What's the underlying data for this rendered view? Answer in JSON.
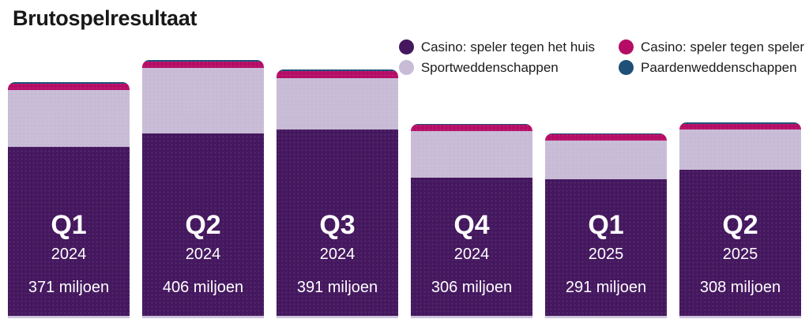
{
  "title": "Brutospelresultaat",
  "chart_data": {
    "type": "bar",
    "stacked": true,
    "title": "Brutospelresultaat",
    "unit": "miljoen",
    "grid": false,
    "axes_visible": false,
    "legend_position": "top-right",
    "categories": [
      {
        "quarter": "Q1",
        "year": "2024",
        "total": 371,
        "total_label": "371 miljoen"
      },
      {
        "quarter": "Q2",
        "year": "2024",
        "total": 406,
        "total_label": "406 miljoen"
      },
      {
        "quarter": "Q3",
        "year": "2024",
        "total": 391,
        "total_label": "391 miljoen"
      },
      {
        "quarter": "Q4",
        "year": "2024",
        "total": 306,
        "total_label": "306 miljoen"
      },
      {
        "quarter": "Q1",
        "year": "2025",
        "total": 291,
        "total_label": "291 miljoen"
      },
      {
        "quarter": "Q2",
        "year": "2025",
        "total": 308,
        "total_label": "308 miljoen"
      }
    ],
    "totals": [
      371,
      406,
      391,
      306,
      291,
      308
    ],
    "series": [
      {
        "name": "Casino: speler tegen het huis",
        "color": "#44175e",
        "values": [
          270,
          291,
          297,
          221,
          219,
          233
        ]
      },
      {
        "name": "Sportweddenschappen",
        "color": "#c8bbd6",
        "values": [
          89,
          103,
          81,
          73,
          61,
          64
        ]
      },
      {
        "name": "Casino: speler tegen speler",
        "color": "#b50d66",
        "values": [
          10,
          10,
          11,
          10,
          9,
          9
        ]
      },
      {
        "name": "Paardenweddenschappen",
        "color": "#1f5078",
        "values": [
          2,
          2,
          2,
          2,
          2,
          2
        ]
      }
    ],
    "bottom_border_color": "#cec4dc",
    "label_text_color": "#ffffff"
  }
}
